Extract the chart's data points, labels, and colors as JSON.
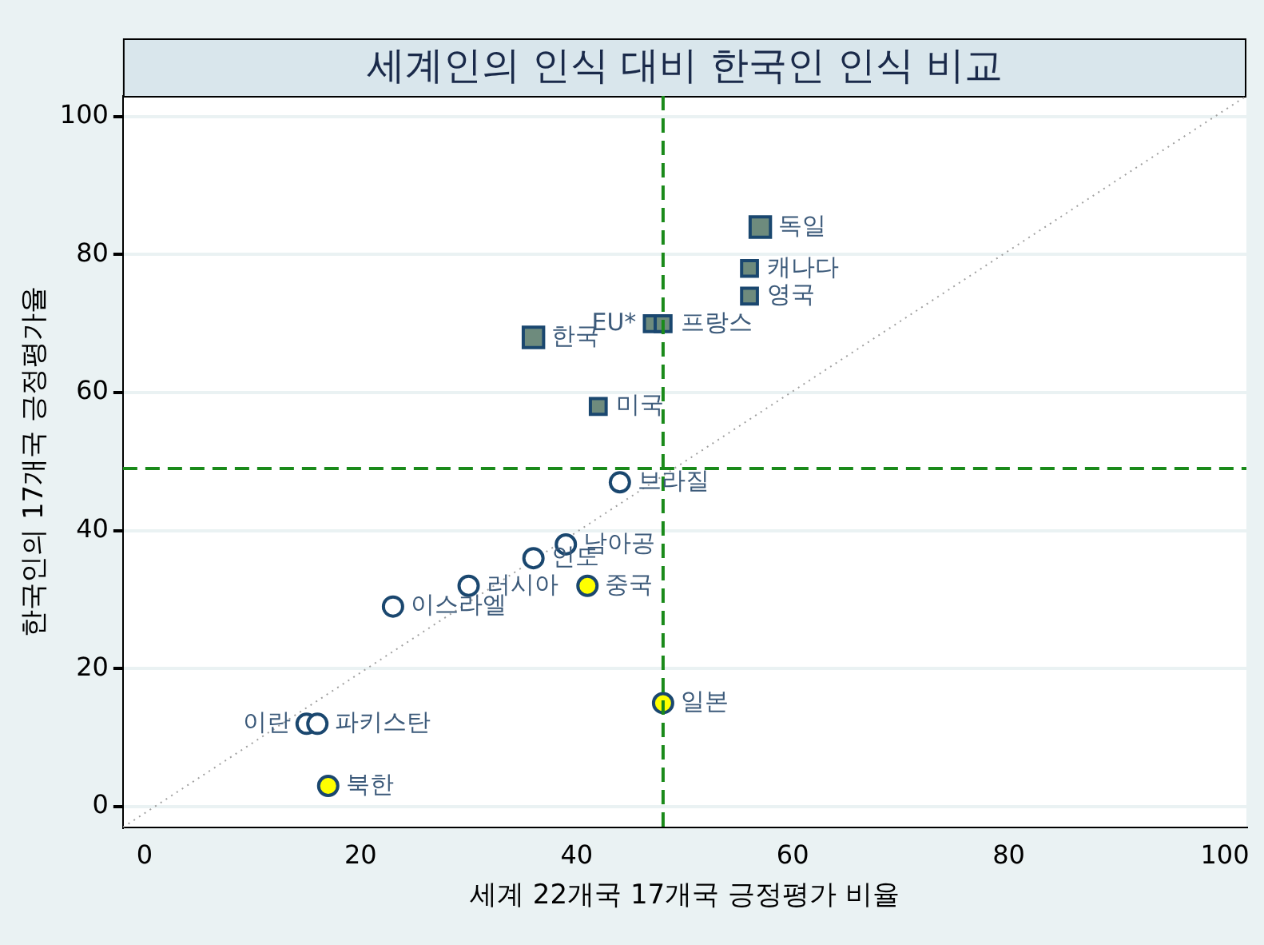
{
  "chart_data": {
    "type": "scatter",
    "title": "세계인의 인식 대비 한국인 인식 비교",
    "xlabel": "세계 22개국 17개국 긍정평가 비율",
    "ylabel": "한국인의 17개국 긍정평가율",
    "xlim": [
      -2,
      102
    ],
    "ylim": [
      -3,
      103
    ],
    "xticks": [
      0,
      20,
      40,
      60,
      80,
      100
    ],
    "yticks": [
      0,
      20,
      40,
      60,
      80,
      100
    ],
    "grid": "y",
    "legend": false,
    "series": [
      {
        "type": "bubble",
        "marker": "square",
        "color": "#6e8b7d",
        "x": [
          57,
          36,
          56,
          56,
          47,
          48,
          42
        ],
        "values": [
          84,
          68,
          78,
          74,
          70,
          70,
          58
        ],
        "sizes": [
          1,
          1,
          0.6,
          0.6,
          0.6,
          0.6,
          0.6
        ]
      },
      {
        "marker": "circle",
        "color": "#ffffff",
        "x": [
          44,
          39,
          36,
          30,
          23,
          15,
          16
        ],
        "values": [
          47,
          38,
          36,
          32,
          29,
          12,
          12
        ]
      },
      {
        "marker": "circle",
        "color": "#ffff00",
        "x": [
          41,
          48,
          17
        ],
        "values": [
          32,
          15,
          3
        ]
      },
      {
        "type": "line",
        "marker": "none",
        "line_style": "dotted",
        "color": "#a0a0a0",
        "x": [
          -2,
          102
        ],
        "values": [
          -3,
          103
        ]
      }
    ],
    "ref_lines": [
      {
        "axis": "x",
        "value": 48,
        "color": "#1a8a1a",
        "line_style": "dashed"
      },
      {
        "axis": "y",
        "value": 49,
        "color": "#1a8a1a",
        "line_style": "dashed"
      }
    ],
    "annotations": [
      {
        "text": "독일",
        "x": 57,
        "y": 84
      },
      {
        "text": "한국",
        "x": 36,
        "y": 68
      },
      {
        "text": "캐나다",
        "x": 56,
        "y": 78
      },
      {
        "text": "영국",
        "x": 56,
        "y": 74
      },
      {
        "text": "EU*",
        "x": 47,
        "y": 70
      },
      {
        "text": "프랑스",
        "x": 48,
        "y": 70
      },
      {
        "text": "미국",
        "x": 42,
        "y": 58
      },
      {
        "text": "브라질",
        "x": 44,
        "y": 47
      },
      {
        "text": "남아공",
        "x": 39,
        "y": 38
      },
      {
        "text": "인도",
        "x": 36,
        "y": 36
      },
      {
        "text": "러시아",
        "x": 30,
        "y": 32
      },
      {
        "text": "이스라엘",
        "x": 23,
        "y": 29
      },
      {
        "text": "이란",
        "x": 15,
        "y": 12
      },
      {
        "text": "파키스탄",
        "x": 16,
        "y": 12
      },
      {
        "text": "중국",
        "x": 41,
        "y": 32
      },
      {
        "text": "일본",
        "x": 48,
        "y": 15
      },
      {
        "text": "북한",
        "x": 17,
        "y": 3
      }
    ]
  }
}
